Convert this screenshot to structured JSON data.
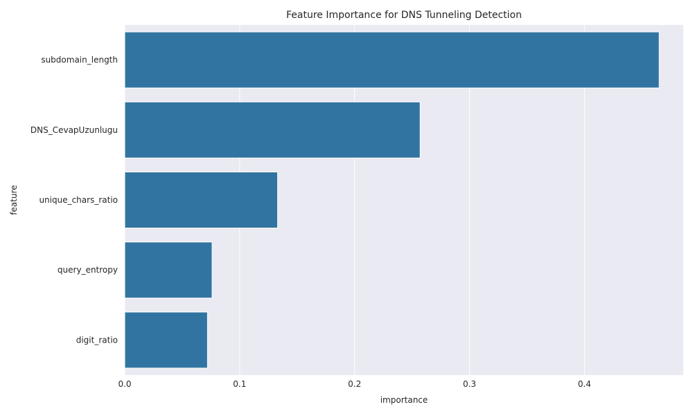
{
  "chart_data": {
    "type": "bar",
    "orientation": "horizontal",
    "title": "Feature Importance for DNS Tunneling Detection",
    "xlabel": "importance",
    "ylabel": "feature",
    "categories": [
      "subdomain_length",
      "DNS_CevapUzunlugu",
      "unique_chars_ratio",
      "query_entropy",
      "digit_ratio"
    ],
    "values": [
      0.465,
      0.257,
      0.133,
      0.076,
      0.072
    ],
    "xlim": [
      0,
      0.486
    ],
    "xticks": [
      0.0,
      0.1,
      0.2,
      0.3,
      0.4
    ],
    "xtick_labels": [
      "0.0",
      "0.1",
      "0.2",
      "0.3",
      "0.4"
    ],
    "grid": true,
    "style": "seaborn-darkgrid",
    "colors": {
      "bar": "#3274a1",
      "plot_background": "#eaeaf2",
      "grid": "#ffffff",
      "text": "#262626"
    }
  }
}
